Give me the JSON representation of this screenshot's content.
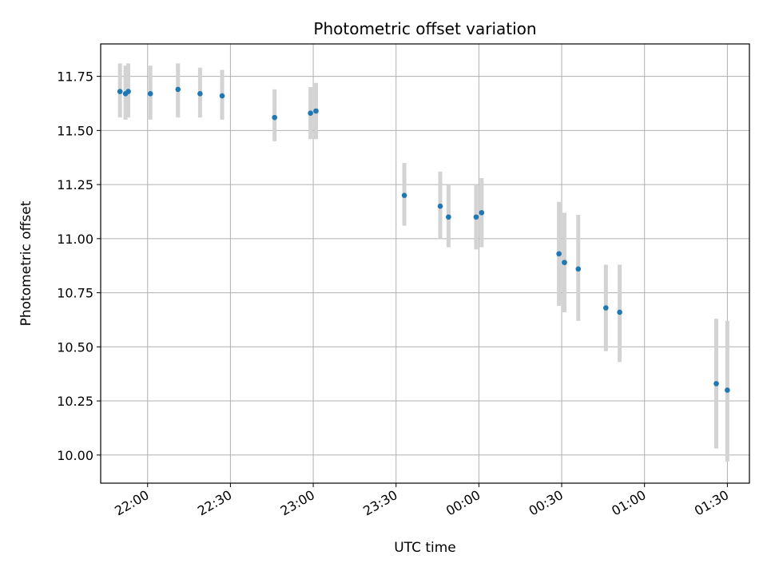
{
  "chart_data": {
    "type": "scatter",
    "title": "Photometric offset variation",
    "xlabel": "UTC time",
    "ylabel": "Photometric offset",
    "grid": true,
    "xlim": [
      "21:43",
      "01:38"
    ],
    "ylim": [
      9.87,
      11.9
    ],
    "x_ticks": [
      "22:00",
      "22:30",
      "23:00",
      "23:30",
      "00:00",
      "00:30",
      "01:00",
      "01:30"
    ],
    "y_ticks": [
      "10.00",
      "10.25",
      "10.50",
      "10.75",
      "11.00",
      "11.25",
      "11.50",
      "11.75"
    ],
    "colors": {
      "point": "#1f77b4",
      "errorbar": "#d3d3d3",
      "grid": "#b0b0b0"
    },
    "series": [
      {
        "x": [
          "21:50",
          "21:52",
          "21:53",
          "22:01",
          "22:11",
          "22:19",
          "22:27",
          "22:46",
          "22:59",
          "23:01",
          "23:33",
          "23:46",
          "23:49",
          "23:59",
          "00:01",
          "00:29",
          "00:31",
          "00:36",
          "00:46",
          "00:51",
          "01:26",
          "01:30"
        ],
        "y": [
          11.68,
          11.67,
          11.68,
          11.67,
          11.69,
          11.67,
          11.66,
          11.56,
          11.58,
          11.59,
          11.2,
          11.15,
          11.1,
          11.1,
          11.12,
          10.93,
          10.89,
          10.86,
          10.68,
          10.66,
          10.33,
          10.3
        ],
        "err_low": [
          11.56,
          11.55,
          11.56,
          11.55,
          11.56,
          11.56,
          11.55,
          11.45,
          11.46,
          11.46,
          11.06,
          11.0,
          10.96,
          10.95,
          10.96,
          10.69,
          10.66,
          10.62,
          10.48,
          10.43,
          10.03,
          9.97
        ],
        "err_high": [
          11.81,
          11.8,
          11.81,
          11.8,
          11.81,
          11.79,
          11.78,
          11.69,
          11.7,
          11.72,
          11.35,
          11.31,
          11.25,
          11.25,
          11.28,
          11.17,
          11.12,
          11.11,
          10.88,
          10.88,
          10.63,
          10.62
        ]
      }
    ]
  }
}
